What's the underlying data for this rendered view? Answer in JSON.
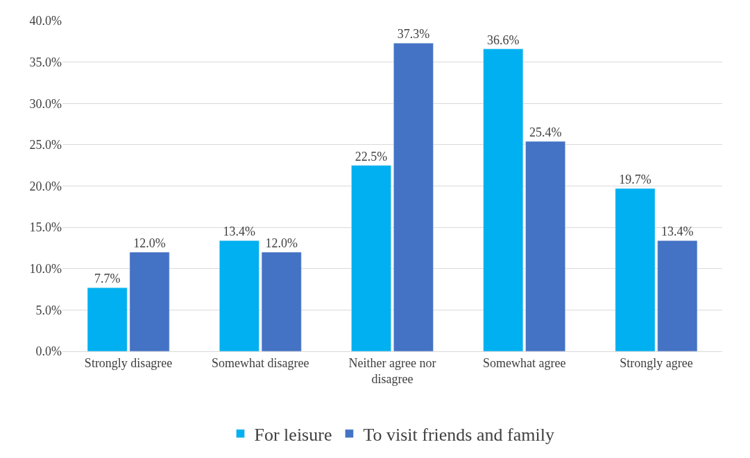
{
  "chart_data": {
    "type": "bar",
    "categories": [
      "Strongly disagree",
      "Somewhat disagree",
      "Neither agree nor disagree",
      "Somewhat agree",
      "Strongly agree"
    ],
    "series": [
      {
        "name": "For leisure",
        "color": "#00b0f0",
        "values": [
          7.7,
          13.4,
          22.5,
          36.6,
          19.7
        ],
        "value_labels": [
          "7.7%",
          "13.4%",
          "22.5%",
          "36.6%",
          "19.7%"
        ]
      },
      {
        "name": "To visit friends and family",
        "color": "#4472c4",
        "values": [
          12.0,
          12.0,
          37.3,
          25.4,
          13.4
        ],
        "value_labels": [
          "12.0%",
          "12.0%",
          "37.3%",
          "25.4%",
          "13.4%"
        ]
      }
    ],
    "ylim": [
      0,
      40
    ],
    "yticks": [
      {
        "value": 0,
        "label": "0.0%"
      },
      {
        "value": 5,
        "label": "5.0%"
      },
      {
        "value": 10,
        "label": "10.0%"
      },
      {
        "value": 15,
        "label": "15.0%"
      },
      {
        "value": 20,
        "label": "20.0%"
      },
      {
        "value": 25,
        "label": "25.0%"
      },
      {
        "value": 30,
        "label": "30.0%"
      },
      {
        "value": 35,
        "label": "35.0%"
      },
      {
        "value": 40,
        "label": "40.0%"
      }
    ],
    "grid": "y",
    "legend": "bottom"
  }
}
